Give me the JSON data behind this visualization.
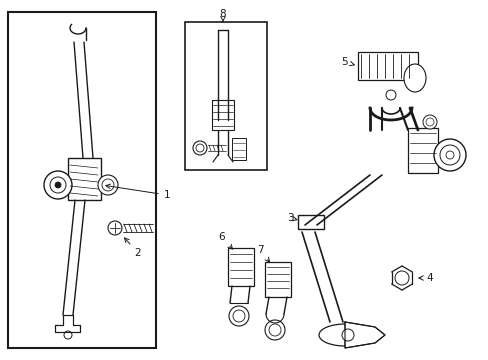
{
  "bg_color": "#ffffff",
  "line_color": "#1a1a1a",
  "fig_width": 4.89,
  "fig_height": 3.6,
  "dpi": 100,
  "xlim": [
    0,
    489
  ],
  "ylim": [
    0,
    360
  ]
}
